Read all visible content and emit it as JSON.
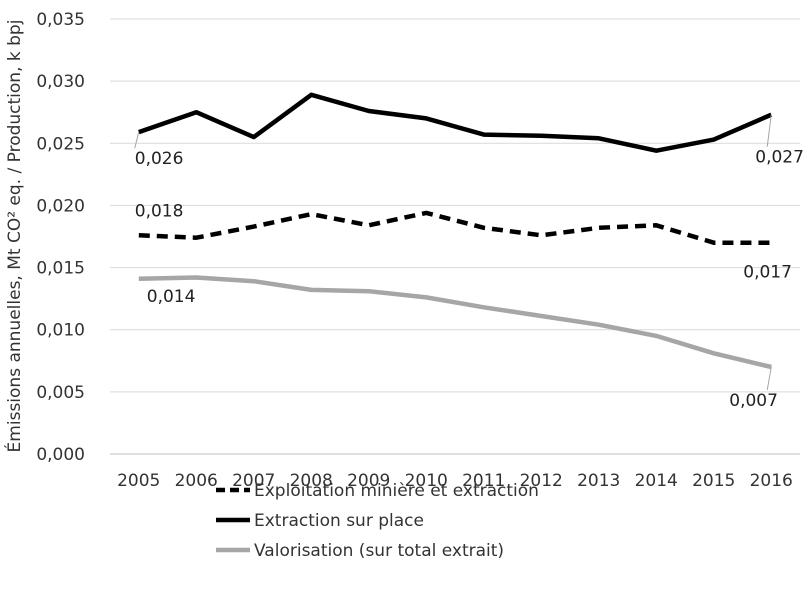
{
  "chart_data": {
    "type": "line",
    "title": "",
    "xlabel": "",
    "ylabel": "Émissions annuelles, Mt CO² eq. / Production, k bpj",
    "ylim": [
      0,
      0.035
    ],
    "y_ticks": [
      "0,000",
      "0,005",
      "0,010",
      "0,015",
      "0,020",
      "0,025",
      "0,030",
      "0,035"
    ],
    "categories": [
      "2005",
      "2006",
      "2007",
      "2008",
      "2009",
      "2010",
      "2011",
      "2012",
      "2013",
      "2014",
      "2015",
      "2016"
    ],
    "grid": "horizontal",
    "legend_position": "bottom",
    "series": [
      {
        "name": "Exploitation minière et extraction",
        "color": "#000000",
        "style": "dashed",
        "values": [
          0.0176,
          0.0174,
          0.0183,
          0.0193,
          0.0184,
          0.0194,
          0.0182,
          0.0176,
          0.0182,
          0.0184,
          0.017,
          0.017
        ],
        "labels": [
          {
            "index": 0,
            "text": "0,018"
          },
          {
            "index": 11,
            "text": "0,017"
          }
        ]
      },
      {
        "name": "Extraction sur place",
        "color": "#000000",
        "style": "solid",
        "values": [
          0.0259,
          0.0275,
          0.0255,
          0.0289,
          0.0276,
          0.027,
          0.0257,
          0.0256,
          0.0254,
          0.0244,
          0.0253,
          0.0273
        ],
        "labels": [
          {
            "index": 0,
            "text": "0,026"
          },
          {
            "index": 11,
            "text": "0,027"
          }
        ]
      },
      {
        "name": "Valorisation (sur total extrait)",
        "color": "#a6a6a6",
        "style": "solid",
        "values": [
          0.0141,
          0.0142,
          0.0139,
          0.0132,
          0.0131,
          0.0126,
          0.0118,
          0.0111,
          0.0104,
          0.0095,
          0.0081,
          0.007
        ],
        "labels": [
          {
            "index": 0,
            "text": "0,014"
          },
          {
            "index": 11,
            "text": "0,007"
          }
        ]
      }
    ]
  }
}
